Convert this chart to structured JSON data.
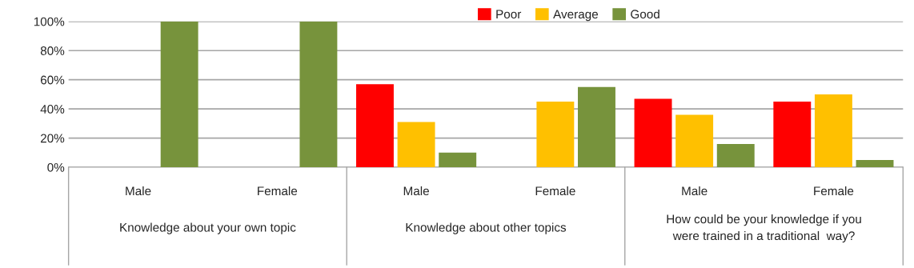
{
  "chart_data": {
    "type": "bar",
    "categories": [
      "Male",
      "Female",
      "Male",
      "Female",
      "Male",
      "Female"
    ],
    "series": [
      {
        "name": "Poor",
        "color": "#ff0000",
        "values": [
          null,
          null,
          57,
          null,
          47,
          45
        ]
      },
      {
        "name": "Average",
        "color": "#ffc000",
        "values": [
          null,
          null,
          31,
          45,
          36,
          50
        ]
      },
      {
        "name": "Good",
        "color": "#77933c",
        "values": [
          100,
          100,
          10,
          55,
          16,
          5
        ]
      }
    ],
    "annotations": [
      "Knowledge about your own topic",
      "Knowledge about other topics",
      "How could be your knowledge if you\nwere trained in a traditional  way?"
    ],
    "ylim": [
      0,
      100
    ],
    "yticks": [
      {
        "value": 0,
        "label": "0%"
      },
      {
        "value": 20,
        "label": "20%"
      },
      {
        "value": 40,
        "label": "40%"
      },
      {
        "value": 60,
        "label": "60%"
      },
      {
        "value": 80,
        "label": "80%"
      },
      {
        "value": 100,
        "label": "100%"
      }
    ],
    "grid": "y",
    "legend": "top"
  }
}
